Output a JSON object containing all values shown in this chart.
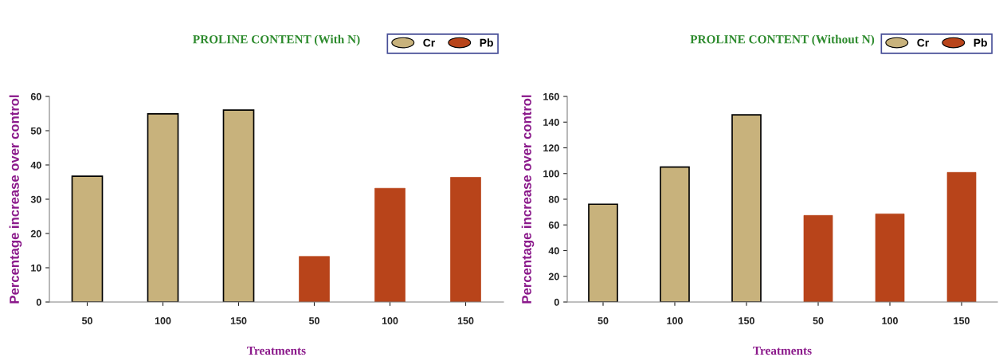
{
  "chart_data": [
    {
      "type": "bar",
      "title": "PROLINE CONTENT (With N)",
      "xlabel": "Treatments",
      "ylabel": "Percentage increase over control",
      "categories": [
        "50",
        "100",
        "150",
        "50",
        "100",
        "150"
      ],
      "series": [
        {
          "name": "Cr",
          "color": "#c8b27c",
          "values": [
            36.7,
            54.9,
            56.0,
            null,
            null,
            null
          ]
        },
        {
          "name": "Pb",
          "color": "#b8441a",
          "values": [
            null,
            null,
            null,
            13.3,
            33.2,
            36.4
          ]
        }
      ],
      "ylim": [
        0,
        60
      ],
      "yticks": [
        0,
        10,
        20,
        30,
        40,
        50,
        60
      ],
      "grid": false,
      "legend": "top right"
    },
    {
      "type": "bar",
      "title": "PROLINE CONTENT (Without N)",
      "xlabel": "Treatments",
      "ylabel": "Percentage increase over control",
      "categories": [
        "50",
        "100",
        "150",
        "50",
        "100",
        "150"
      ],
      "series": [
        {
          "name": "Cr",
          "color": "#c8b27c",
          "values": [
            76.1,
            105.0,
            145.7,
            null,
            null,
            null
          ]
        },
        {
          "name": "Pb",
          "color": "#b8441a",
          "values": [
            null,
            null,
            null,
            67.4,
            68.6,
            100.9
          ]
        }
      ],
      "ylim": [
        0,
        160
      ],
      "yticks": [
        0,
        20,
        40,
        60,
        80,
        100,
        120,
        140,
        160
      ],
      "grid": false,
      "legend": "top right"
    }
  ]
}
